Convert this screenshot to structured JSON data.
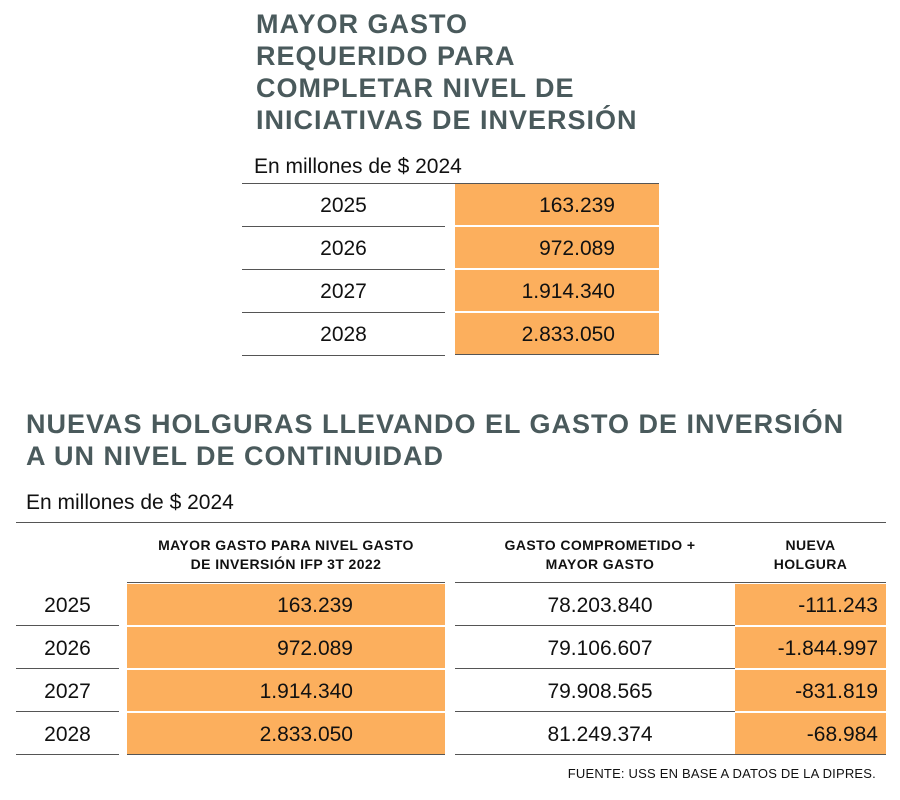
{
  "table1": {
    "title": "MAYOR GASTO\nREQUERIDO PARA\nCOMPLETAR NIVEL DE\nINICIATIVAS DE INVERSIÓN",
    "unit": "En millones de $ 2024",
    "rows": [
      {
        "year": "2025",
        "value": "163.239"
      },
      {
        "year": "2026",
        "value": "972.089"
      },
      {
        "year": "2027",
        "value": "1.914.340"
      },
      {
        "year": "2028",
        "value": "2.833.050"
      }
    ],
    "highlight_color": "#fcaf5d"
  },
  "table2": {
    "title": "NUEVAS HOLGURAS LLEVANDO EL GASTO DE INVERSIÓN\nA UN NIVEL DE CONTINUIDAD",
    "unit": "En millones de $ 2024",
    "headers": {
      "mayor": "MAYOR GASTO PARA NIVEL GASTO\nDE INVERSIÓN IFP 3T 2022",
      "comprometido": "GASTO COMPROMETIDO +\nMAYOR GASTO",
      "holgura": "NUEVA\nHOLGURA"
    },
    "rows": [
      {
        "year": "2025",
        "mayor": "163.239",
        "comprometido": "78.203.840",
        "holgura": "-111.243"
      },
      {
        "year": "2026",
        "mayor": "972.089",
        "comprometido": "79.106.607",
        "holgura": "-1.844.997"
      },
      {
        "year": "2027",
        "mayor": "1.914.340",
        "comprometido": "79.908.565",
        "holgura": "-831.819"
      },
      {
        "year": "2028",
        "mayor": "2.833.050",
        "comprometido": "81.249.374",
        "holgura": "-68.984"
      }
    ]
  },
  "source": "FUENTE: USS EN BASE A DATOS DE LA DIPRES."
}
